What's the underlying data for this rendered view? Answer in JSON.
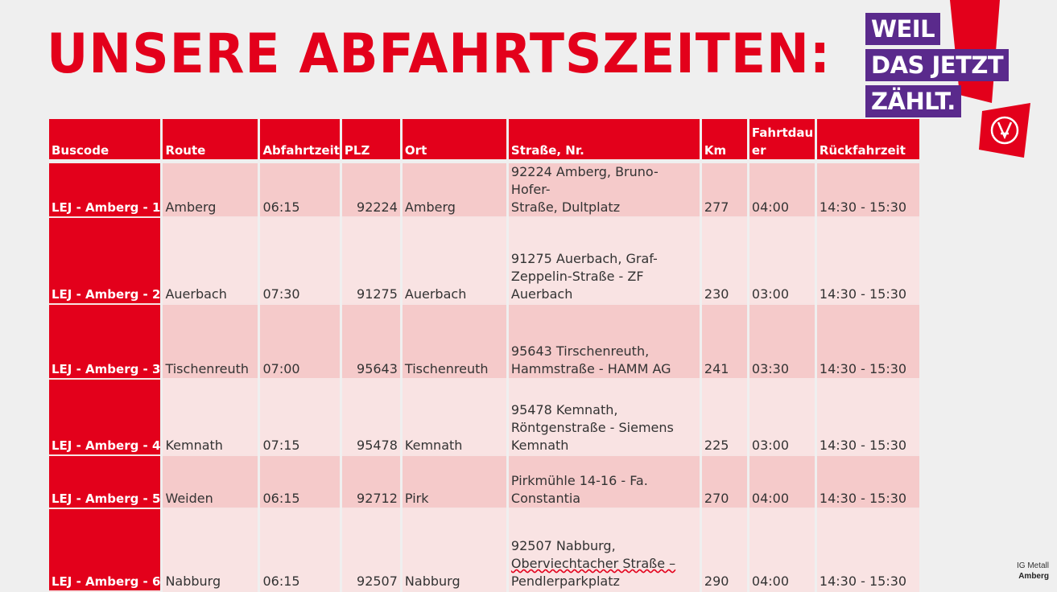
{
  "title": "UNSERE ABFAHRTSZEITEN:",
  "logo": {
    "slogan_lines": [
      "WEIL",
      "DAS JETZT",
      "ZÄHLT."
    ],
    "colors": {
      "slogan_bg": "#5a2a8c",
      "exclamation": "#e3001b"
    },
    "icon": "ig-metall-logo"
  },
  "table": {
    "headers": [
      "Buscode",
      "Route",
      "Abfahrtzeit",
      "PLZ",
      "Ort",
      "Straße, Nr.",
      "Km",
      "Fahrtdauer",
      "Rückfahrzeit"
    ],
    "header_fahrtdauer_lines": [
      "Fahrtdau",
      "er"
    ],
    "rows": [
      {
        "buscode": "LEJ  - Amberg - 1",
        "route": "Amberg",
        "abfahrt": "06:15",
        "plz": "92224",
        "ort": "Amberg",
        "strasse_lines": [
          "92224 Amberg, Bruno-Hofer-",
          "Straße, Dultplatz"
        ],
        "km": "277",
        "dauer": "04:00",
        "rueck": "14:30 - 15:30"
      },
      {
        "buscode": "LEJ  - Amberg - 2",
        "route": "Auerbach",
        "abfahrt": "07:30",
        "plz": "91275",
        "ort": "Auerbach",
        "strasse_lines": [
          "91275 Auerbach, Graf-",
          "Zeppelin-Straße - ZF",
          "Auerbach"
        ],
        "km": "230",
        "dauer": "03:00",
        "rueck": "14:30 - 15:30"
      },
      {
        "buscode": "LEJ  - Amberg - 3",
        "route": "Tischenreuth",
        "abfahrt": "07:00",
        "plz": "95643",
        "ort": "Tischenreuth",
        "strasse_lines": [
          "95643 Tirschenreuth,",
          "Hammstraße - HAMM AG"
        ],
        "km": "241",
        "dauer": "03:30",
        "rueck": "14:30 - 15:30"
      },
      {
        "buscode": "LEJ  - Amberg - 4",
        "route": "Kemnath",
        "abfahrt": "07:15",
        "plz": "95478",
        "ort": "Kemnath",
        "strasse_lines": [
          "95478 Kemnath,",
          "Röntgenstraße - Siemens",
          "Kemnath"
        ],
        "km": "225",
        "dauer": "03:00",
        "rueck": "14:30 - 15:30"
      },
      {
        "buscode": "LEJ  - Amberg - 5",
        "route": "Weiden",
        "abfahrt": "06:15",
        "plz": "92712",
        "ort": "Pirk",
        "strasse_lines": [
          "Pirkmühle 14-16 - Fa.",
          "Constantia"
        ],
        "km": "270",
        "dauer": "04:00",
        "rueck": "14:30 - 15:30"
      },
      {
        "buscode": "LEJ  - Amberg - 6",
        "route": "Nabburg",
        "abfahrt": "06:15",
        "plz": "92507",
        "ort": "Nabburg",
        "strasse_lines": [
          "92507 Nabburg,",
          "Oberviechtacher Straße –",
          "Pendlerparkplatz"
        ],
        "km": "290",
        "dauer": "04:00",
        "rueck": "14:30 - 15:30"
      }
    ]
  },
  "footer": {
    "line1": "IG Metall",
    "line2": "Amberg"
  },
  "colors": {
    "accent": "#e3001b",
    "row_odd": "#f5caca",
    "row_even": "#f9e3e3",
    "background": "#efefef"
  }
}
